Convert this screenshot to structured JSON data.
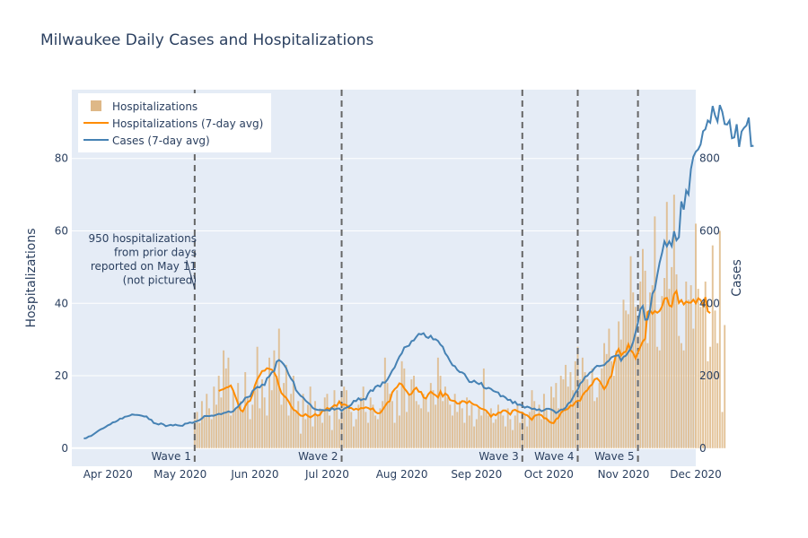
{
  "chart_data": {
    "type": "bar+line",
    "title": "Milwaukee Daily Cases and Hospitalizations",
    "y_left_label": "Hospitalizations",
    "y_right_label": "Cases",
    "y_left_range": [
      -5,
      99
    ],
    "y_right_range": [
      -50,
      990
    ],
    "y_left_ticks": [
      0,
      20,
      40,
      60,
      80
    ],
    "y_right_ticks": [
      0,
      200,
      400,
      600,
      800
    ],
    "x_start": "2020-03-17",
    "x_end": "2020-12-01",
    "x_ticks": [
      {
        "date": "2020-04-01",
        "label": "Apr 2020"
      },
      {
        "date": "2020-05-01",
        "label": "May 2020"
      },
      {
        "date": "2020-06-01",
        "label": "Jun 2020"
      },
      {
        "date": "2020-07-01",
        "label": "Jul 2020"
      },
      {
        "date": "2020-08-01",
        "label": "Aug 2020"
      },
      {
        "date": "2020-09-01",
        "label": "Sep 2020"
      },
      {
        "date": "2020-10-01",
        "label": "Oct 2020"
      },
      {
        "date": "2020-11-01",
        "label": "Nov 2020"
      },
      {
        "date": "2020-12-01",
        "label": "Dec 2020"
      }
    ],
    "waves": [
      {
        "date": "2020-05-07",
        "label": "Wave 1"
      },
      {
        "date": "2020-07-07",
        "label": "Wave 2"
      },
      {
        "date": "2020-09-20",
        "label": "Wave 3"
      },
      {
        "date": "2020-10-13",
        "label": "Wave 4"
      },
      {
        "date": "2020-11-07",
        "label": "Wave 5"
      }
    ],
    "annotation": {
      "date": "2020-05-07",
      "value": 44,
      "lines": [
        "950 hospitalizations",
        "from prior days",
        "reported on May 11",
        "(not pictured)"
      ]
    },
    "legend": {
      "position": "top-left",
      "items": [
        {
          "label": "Hospitalizations",
          "kind": "bar"
        },
        {
          "label": "Hospitalizations (7-day avg)",
          "kind": "line"
        },
        {
          "label": "Cases (7-day avg)",
          "kind": "line"
        }
      ]
    },
    "colors": {
      "background": "#e5ecf6",
      "grid": "#ffffff",
      "bars": "#deb887",
      "hosp_avg": "#ff8c00",
      "cases_avg": "#4682b4",
      "wave_line": "#666666"
    },
    "hospitalizations_start": "2020-05-07",
    "hospitalizations": [
      8,
      10,
      7,
      13,
      9,
      15,
      11,
      8,
      17,
      12,
      20,
      14,
      27,
      22,
      25,
      9,
      16,
      11,
      18,
      13,
      10,
      21,
      14,
      8,
      12,
      16,
      28,
      11,
      19,
      14,
      9,
      25,
      16,
      27,
      20,
      33,
      12,
      18,
      23,
      9,
      15,
      20,
      10,
      13,
      4,
      15,
      8,
      12,
      17,
      6,
      13,
      9,
      11,
      7,
      14,
      15,
      9,
      5,
      16,
      12,
      8,
      14,
      17,
      16,
      12,
      10,
      6,
      8,
      12,
      14,
      17,
      10,
      7,
      14,
      12,
      9,
      8,
      11,
      13,
      25,
      18,
      15,
      13,
      7,
      16,
      9,
      24,
      22,
      10,
      15,
      19,
      20,
      13,
      12,
      11,
      15,
      14,
      10,
      18,
      16,
      12,
      25,
      20,
      13,
      17,
      14,
      12,
      9,
      15,
      10,
      13,
      11,
      7,
      14,
      9,
      12,
      6,
      8,
      11,
      9,
      22,
      10,
      9,
      11,
      7,
      8,
      12,
      10,
      9,
      6,
      11,
      8,
      5,
      9,
      12,
      7,
      10,
      9,
      6,
      10,
      16,
      13,
      9,
      12,
      8,
      15,
      11,
      8,
      17,
      14,
      18,
      11,
      20,
      19,
      23,
      17,
      21,
      16,
      24,
      28,
      19,
      25,
      21,
      19,
      17,
      22,
      13,
      14,
      18,
      22,
      29,
      26,
      33,
      24,
      20,
      27,
      35,
      30,
      41,
      38,
      37,
      53,
      43,
      39,
      31,
      46,
      55,
      49,
      29,
      43,
      45,
      64,
      28,
      27,
      42,
      47,
      68,
      44,
      50,
      70,
      48,
      31,
      29,
      27,
      46,
      41,
      45,
      33,
      62,
      44,
      39,
      40,
      46,
      24,
      28,
      56,
      38,
      29,
      60,
      10,
      34
    ],
    "hosp_avg_start": "2020-05-17",
    "hosp_avg": [
      15.8,
      16.1,
      16.3,
      16.7,
      16.9,
      17.3,
      15.9,
      14.1,
      12.3,
      10.6,
      10.1,
      11.6,
      12.7,
      13.1,
      14.8,
      17.3,
      19.0,
      20.1,
      21.3,
      21.4,
      22.1,
      21.9,
      21.7,
      20.9,
      19.6,
      17.1,
      15.2,
      14.5,
      13.9,
      12.9,
      11.6,
      10.6,
      10.3,
      9.6,
      9.0,
      8.9,
      9.4,
      8.9,
      8.5,
      8.9,
      9.4,
      9.0,
      9.2,
      10.3,
      10.4,
      11.1,
      10.8,
      11.3,
      11.9,
      11.7,
      12.9,
      11.9,
      12.1,
      11.9,
      11.1,
      11.1,
      10.6,
      10.9,
      10.6,
      11.1,
      11.0,
      11.3,
      11.1,
      10.7,
      11.0,
      10.0,
      9.6,
      9.7,
      10.6,
      11.6,
      12.6,
      13.0,
      15.4,
      16.3,
      16.9,
      17.9,
      17.6,
      16.5,
      15.7,
      14.7,
      15.0,
      16.1,
      16.7,
      15.6,
      15.5,
      14.0,
      13.7,
      14.9,
      15.6,
      15.0,
      14.6,
      14.0,
      15.7,
      14.3,
      15.1,
      14.6,
      13.3,
      13.1,
      13.0,
      12.3,
      12.3,
      13.0,
      12.9,
      12.4,
      13.0,
      12.4,
      12.0,
      11.9,
      11.3,
      10.9,
      10.7,
      10.4,
      9.6,
      8.7,
      9.4,
      9.1,
      9.8,
      9.8,
      10.4,
      10.4,
      9.9,
      9.3,
      10.4,
      10.6,
      10.2,
      9.9,
      9.8,
      9.3,
      9.1,
      8.5,
      7.8,
      8.9,
      9.2,
      9.3,
      9.1,
      8.3,
      8.2,
      7.4,
      7.0,
      6.9,
      8.0,
      8.4,
      9.7,
      10.4,
      10.6,
      10.9,
      11.8,
      11.7,
      12.7,
      13.1,
      13.1,
      14.6,
      15.5,
      16.0,
      17.1,
      17.6,
      19.0,
      19.3,
      18.6,
      17.5,
      16.3,
      17.3,
      19.1,
      20.0,
      23.4,
      26.2,
      27.4,
      25.6,
      26.4,
      26.7,
      28.7,
      27.1,
      26.3,
      24.8,
      26.5,
      28.0,
      29.5,
      30.2,
      37.6,
      38.1,
      37.1,
      37.9,
      37.4,
      37.9,
      39.1,
      41.3,
      41.5,
      39.4,
      39.1,
      42.5,
      43.4,
      40.1,
      40.9,
      39.7,
      40.5,
      40.2,
      40.2,
      41.0,
      40.0,
      41.4,
      40.9,
      39.4,
      41.7,
      37.8,
      37.3
    ],
    "cases_start": "2020-03-22",
    "cases_avg": [
      26.8,
      27.7,
      32.1,
      33.8,
      38.5,
      43.2,
      48.1,
      52.0,
      54.7,
      58.6,
      63.1,
      65.8,
      71.2,
      72.4,
      76.1,
      81.8,
      82.1,
      86.6,
      87.9,
      89.6,
      93.2,
      92.1,
      92.0,
      91.1,
      89.6,
      87.5,
      87.6,
      80.3,
      78.2,
      69.5,
      67.8,
      65.3,
      68.4,
      65.8,
      60.6,
      62.5,
      64.5,
      62.3,
      64.9,
      62.8,
      62.2,
      61.6,
      67.7,
      68.3,
      70.9,
      69.5,
      72.6,
      74.7,
      77.4,
      82.0,
      88.6,
      89.0,
      88.5,
      90.0,
      89.7,
      92.5,
      94.9,
      93.5,
      97.0,
      98.3,
      101.5,
      99.4,
      101.6,
      109.6,
      114.6,
      123.2,
      128.5,
      139.2,
      141.2,
      142.9,
      158.1,
      163.3,
      169.3,
      167.6,
      175.5,
      174.1,
      193.3,
      198.2,
      209.6,
      213.0,
      238.6,
      243.4,
      238.5,
      231.2,
      220.9,
      203.7,
      191.8,
      183.3,
      160.4,
      152.5,
      144.3,
      140.1,
      131.4,
      125.5,
      120.4,
      111.3,
      107.6,
      105.8,
      105.4,
      105.4,
      104.5,
      105.5,
      103.5,
      110.5,
      106.2,
      109.1,
      109.8,
      103.0,
      108.8,
      112.2,
      114.3,
      120.2,
      130.6,
      130.1,
      137.9,
      132.5,
      135.7,
      134.7,
      150.9,
      159.8,
      158.1,
      169.4,
      173.0,
      170.2,
      181.8,
      180.8,
      189.2,
      201.4,
      214.4,
      222.9,
      239.4,
      252.9,
      262.0,
      278.4,
      280.8,
      283.4,
      295.6,
      297.6,
      307.2,
      315.7,
      314.2,
      317.4,
      307.3,
      304.3,
      310.5,
      300.5,
      300.6,
      296.2,
      285.8,
      280.1,
      261.9,
      253.3,
      240.3,
      229.0,
      226.3,
      216.1,
      210.2,
      209.3,
      204.7,
      193.7,
      183.1,
      182.3,
      186.4,
      180.8,
      176.7,
      180.2,
      167.1,
      164.5,
      166.6,
      163.6,
      158.1,
      155.4,
      153.9,
      143.2,
      144.4,
      140.0,
      132.9,
      133.8,
      124.4,
      128.2,
      119.7,
      120.3,
      117.5,
      111.8,
      114.6,
      112.4,
      108.3,
      109.1,
      104.9,
      107.6,
      102.0,
      104.8,
      108.6,
      108.7,
      106.8,
      103.2,
      96.8,
      101.1,
      106.4,
      106.9,
      111.8,
      123.0,
      127.5,
      139.5,
      152.9,
      161.4,
      178.3,
      184.2,
      196.9,
      199.9,
      208.5,
      212.0,
      221.6,
      227.5,
      226.5,
      228.1,
      229.2,
      237.0,
      242.1,
      251.1,
      253.8,
      255.5,
      256.5,
      241.4,
      252.2,
      255.5,
      265.5,
      274.5,
      292.6,
      319.5,
      346.4,
      383.7,
      392.6,
      354.9,
      355.3,
      380.9,
      426.3,
      438.5,
      477.9,
      512.1,
      538.6,
      571.3,
      557.5,
      571.1,
      557.8,
      598.8,
      574.1,
      582.4,
      681.2,
      659.0,
      711.4,
      700.6,
      770.7,
      804.8,
      818.6,
      825.1,
      839.0,
      875.1,
      880.9,
      904.8,
      898.7,
      944.8,
      918.7,
      902.1,
      947.4,
      929.4,
      894.8,
      893.6,
      904.7,
      856.0,
      858.3,
      894.3,
      831.9,
      874.4,
      884.6,
      891.0,
      912.9,
      834.3,
      835.0
    ]
  }
}
